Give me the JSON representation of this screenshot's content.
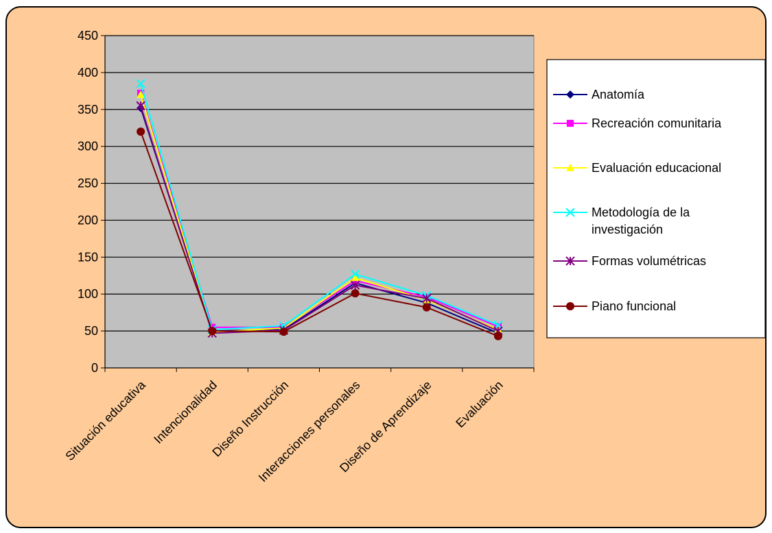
{
  "chart_data": {
    "type": "line",
    "categories": [
      "Situación educativa",
      "Intencionalidad",
      "Diseño Instrucción",
      "Interacciones personales",
      "Diseño de Aprendizaje",
      "Evaluación"
    ],
    "ylim": [
      0,
      450
    ],
    "yticks": [
      0,
      50,
      100,
      150,
      200,
      250,
      300,
      350,
      400,
      450
    ],
    "grid": true,
    "legend_position": "right",
    "plot_background": "#c0c0c0",
    "frame_background": "#ffcc99",
    "series": [
      {
        "name": "Anatomía",
        "color": "#000080",
        "marker": "diamond",
        "values": [
          352,
          50,
          52,
          115,
          88,
          47
        ]
      },
      {
        "name": "Recreación comunitaria",
        "color": "#ff00ff",
        "marker": "square",
        "values": [
          372,
          55,
          55,
          118,
          96,
          56
        ]
      },
      {
        "name": "Evaluación educacional",
        "color": "#ffff00",
        "marker": "triangle",
        "values": [
          370,
          48,
          54,
          122,
          92,
          52
        ]
      },
      {
        "name": "Metodología de la investigación",
        "color": "#00ffff",
        "marker": "x",
        "values": [
          385,
          52,
          57,
          127,
          98,
          58
        ]
      },
      {
        "name": "Formas volumétricas",
        "color": "#800080",
        "marker": "star",
        "values": [
          355,
          47,
          51,
          112,
          94,
          50
        ]
      },
      {
        "name": "Piano funcional",
        "color": "#800000",
        "marker": "circle",
        "values": [
          320,
          50,
          49,
          101,
          82,
          43
        ]
      }
    ]
  }
}
